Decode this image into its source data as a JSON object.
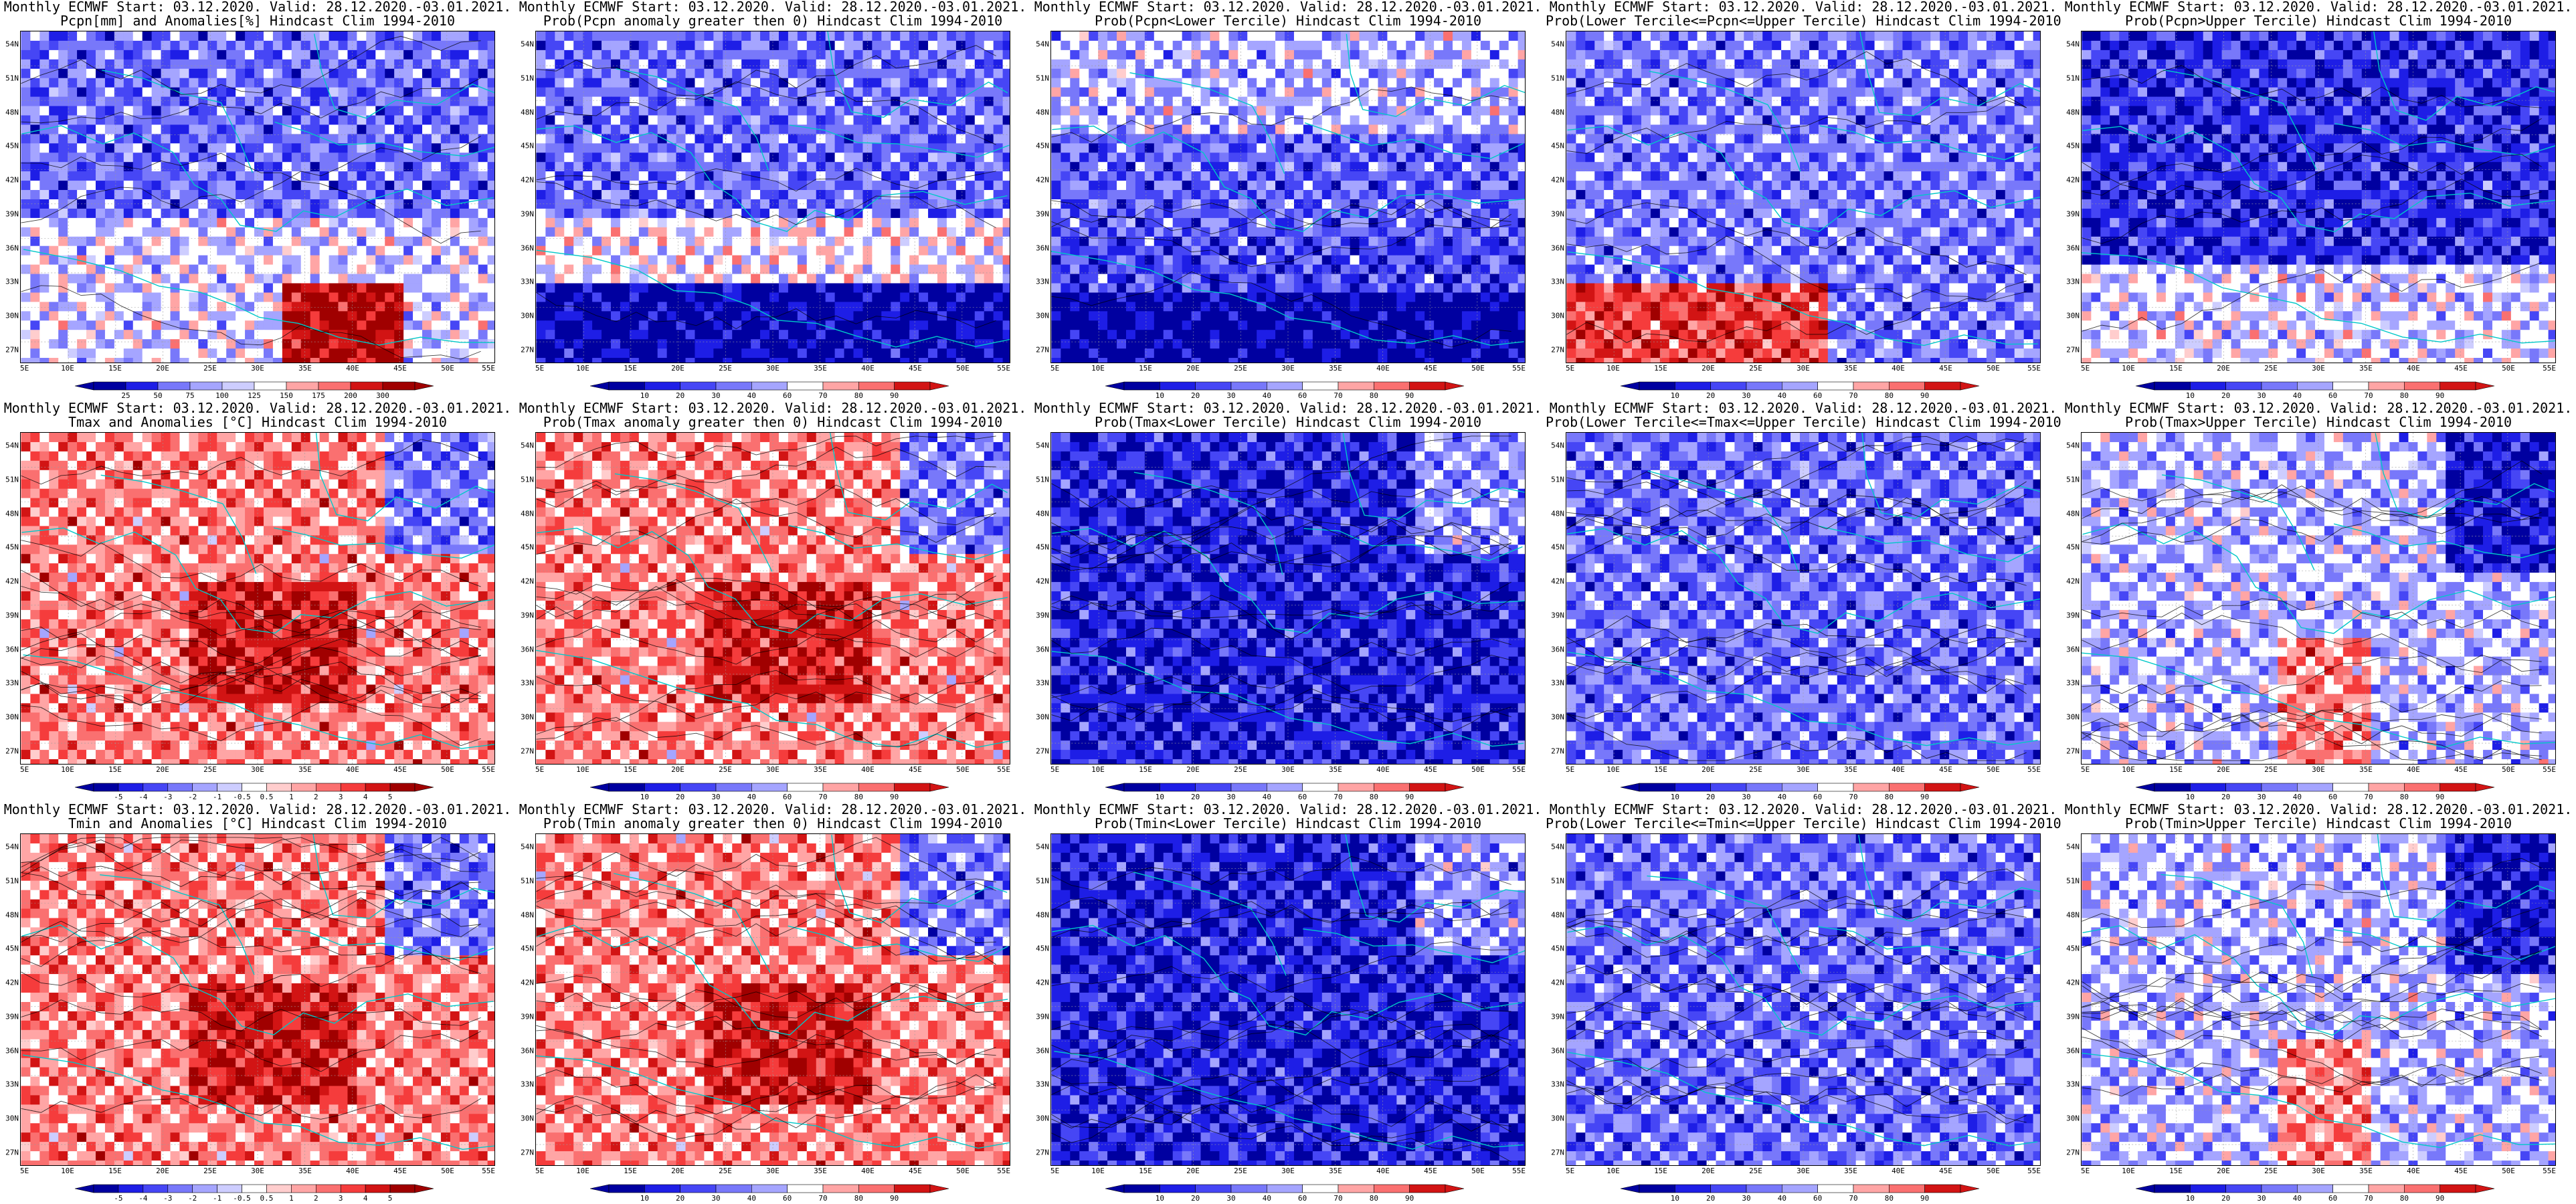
{
  "figure": {
    "panels": [
      {
        "id": "pcpn-anom",
        "title_line1": "Monthly ECMWF Start: 03.12.2020. Valid: 28.12.2020.-03.01.2021.",
        "title_line2": "Pcpn[mm] and Anomalies[%] Hindcast Clim 1994-2010",
        "scheme": "anom-pct",
        "colorbar_ticks": [
          "25",
          "50",
          "75",
          "100",
          "125",
          "150",
          "175",
          "200",
          "300"
        ]
      },
      {
        "id": "pcpn-prob-pos",
        "title_line1": "Monthly ECMWF Start: 03.12.2020. Valid: 28.12.2020.-03.01.2021.",
        "title_line2": "Prob(Pcpn anomaly greater then 0) Hindcast Clim 1994-2010",
        "scheme": "prob",
        "colorbar_ticks": [
          "10",
          "20",
          "30",
          "40",
          "60",
          "70",
          "80",
          "90"
        ]
      },
      {
        "id": "pcpn-lower",
        "title_line1": "Monthly ECMWF Start: 03.12.2020. Valid: 28.12.2020.-03.01.2021.",
        "title_line2": "Prob(Pcpn<Lower Tercile) Hindcast Clim 1994-2010",
        "scheme": "prob",
        "colorbar_ticks": [
          "10",
          "20",
          "30",
          "40",
          "60",
          "70",
          "80",
          "90"
        ]
      },
      {
        "id": "pcpn-middle",
        "title_line1": "Monthly ECMWF Start: 03.12.2020. Valid: 28.12.2020.-03.01.2021.",
        "title_line2": "Prob(Lower Tercile<=Pcpn<=Upper Tercile) Hindcast Clim 1994-2010",
        "scheme": "prob",
        "colorbar_ticks": [
          "10",
          "20",
          "30",
          "40",
          "60",
          "70",
          "80",
          "90"
        ]
      },
      {
        "id": "pcpn-upper",
        "title_line1": "Monthly ECMWF Start: 03.12.2020. Valid: 28.12.2020.-03.01.2021.",
        "title_line2": "Prob(Pcpn>Upper Tercile) Hindcast Clim 1994-2010",
        "scheme": "prob",
        "colorbar_ticks": [
          "10",
          "20",
          "30",
          "40",
          "60",
          "70",
          "80",
          "90"
        ]
      },
      {
        "id": "tmax-anom",
        "title_line1": "Monthly ECMWF Start: 03.12.2020. Valid: 28.12.2020.-03.01.2021.",
        "title_line2": "Tmax and Anomalies [°C] Hindcast Clim 1994-2010",
        "scheme": "anom-deg",
        "colorbar_ticks": [
          "-5",
          "-4",
          "-3",
          "-2",
          "-1",
          "-0.5",
          "0.5",
          "1",
          "2",
          "3",
          "4",
          "5"
        ]
      },
      {
        "id": "tmax-prob-pos",
        "title_line1": "Monthly ECMWF Start: 03.12.2020. Valid: 28.12.2020.-03.01.2021.",
        "title_line2": "Prob(Tmax anomaly greater then 0) Hindcast Clim 1994-2010",
        "scheme": "prob",
        "colorbar_ticks": [
          "10",
          "20",
          "30",
          "40",
          "60",
          "70",
          "80",
          "90"
        ]
      },
      {
        "id": "tmax-lower",
        "title_line1": "Monthly ECMWF Start: 03.12.2020. Valid: 28.12.2020.-03.01.2021.",
        "title_line2": "Prob(Tmax<Lower Tercile) Hindcast Clim 1994-2010",
        "scheme": "prob",
        "colorbar_ticks": [
          "10",
          "20",
          "30",
          "40",
          "60",
          "70",
          "80",
          "90"
        ]
      },
      {
        "id": "tmax-middle",
        "title_line1": "Monthly ECMWF Start: 03.12.2020. Valid: 28.12.2020.-03.01.2021.",
        "title_line2": "Prob(Lower Tercile<=Tmax<=Upper Tercile) Hindcast Clim 1994-2010",
        "scheme": "prob",
        "colorbar_ticks": [
          "10",
          "20",
          "30",
          "40",
          "60",
          "70",
          "80",
          "90"
        ]
      },
      {
        "id": "tmax-upper",
        "title_line1": "Monthly ECMWF Start: 03.12.2020. Valid: 28.12.2020.-03.01.2021.",
        "title_line2": "Prob(Tmax>Upper Tercile) Hindcast Clim 1994-2010",
        "scheme": "prob",
        "colorbar_ticks": [
          "10",
          "20",
          "30",
          "40",
          "60",
          "70",
          "80",
          "90"
        ]
      },
      {
        "id": "tmin-anom",
        "title_line1": "Monthly ECMWF Start: 03.12.2020. Valid: 28.12.2020.-03.01.2021.",
        "title_line2": "Tmin and Anomalies [°C] Hindcast Clim 1994-2010",
        "scheme": "anom-deg",
        "colorbar_ticks": [
          "-5",
          "-4",
          "-3",
          "-2",
          "-1",
          "-0.5",
          "0.5",
          "1",
          "2",
          "3",
          "4",
          "5"
        ]
      },
      {
        "id": "tmin-prob-pos",
        "title_line1": "Monthly ECMWF Start: 03.12.2020. Valid: 28.12.2020.-03.01.2021.",
        "title_line2": "Prob(Tmin anomaly greater then 0) Hindcast Clim 1994-2010",
        "scheme": "prob",
        "colorbar_ticks": [
          "10",
          "20",
          "30",
          "40",
          "60",
          "70",
          "80",
          "90"
        ]
      },
      {
        "id": "tmin-lower",
        "title_line1": "Monthly ECMWF Start: 03.12.2020. Valid: 28.12.2020.-03.01.2021.",
        "title_line2": "Prob(Tmin<Lower Tercile) Hindcast Clim 1994-2010",
        "scheme": "prob",
        "colorbar_ticks": [
          "10",
          "20",
          "30",
          "40",
          "60",
          "70",
          "80",
          "90"
        ]
      },
      {
        "id": "tmin-middle",
        "title_line1": "Monthly ECMWF Start: 03.12.2020. Valid: 28.12.2020.-03.01.2021.",
        "title_line2": "Prob(Lower Tercile<=Tmin<=Upper Tercile) Hindcast Clim 1994-2010",
        "scheme": "prob",
        "colorbar_ticks": [
          "10",
          "20",
          "30",
          "40",
          "60",
          "70",
          "80",
          "90"
        ]
      },
      {
        "id": "tmin-upper",
        "title_line1": "Monthly ECMWF Start: 03.12.2020. Valid: 28.12.2020.-03.01.2021.",
        "title_line2": "Prob(Tmin>Upper Tercile) Hindcast Clim 1994-2010",
        "scheme": "prob",
        "colorbar_ticks": [
          "10",
          "20",
          "30",
          "40",
          "60",
          "70",
          "80",
          "90"
        ]
      }
    ],
    "lat_labels": [
      "54N",
      "51N",
      "48N",
      "45N",
      "42N",
      "39N",
      "36N",
      "33N",
      "30N",
      "27N"
    ],
    "lon_labels": [
      "5E",
      "10E",
      "15E",
      "20E",
      "25E",
      "30E",
      "35E",
      "40E",
      "45E",
      "50E",
      "55E"
    ],
    "colors": {
      "coastline": "#00c8c8",
      "contour": "#000000",
      "blue_ramp": [
        "#0000a0",
        "#1e1ee6",
        "#4646f5",
        "#7878fa",
        "#a5a5ff",
        "#cdcdff"
      ],
      "red_ramp": [
        "#ffcdcd",
        "#ffa5a5",
        "#fa7070",
        "#f53c3c",
        "#d21414",
        "#a00000"
      ],
      "neutral": "#ffffff"
    }
  }
}
